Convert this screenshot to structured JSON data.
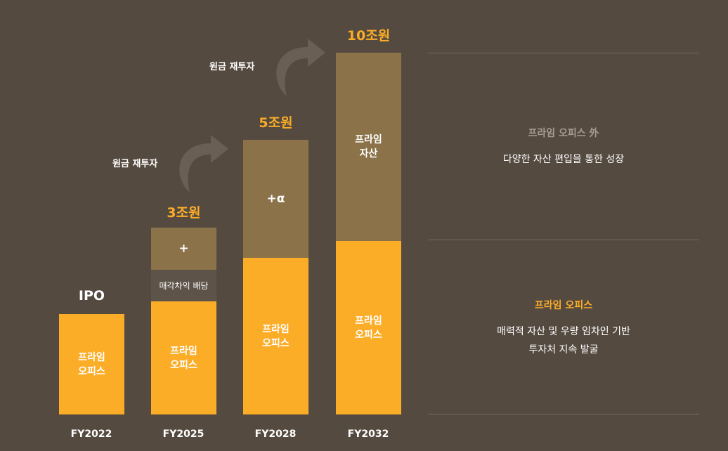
{
  "chart_data": {
    "type": "bar",
    "stacked": true,
    "categories": [
      "FY2022",
      "FY2025",
      "FY2028",
      "FY2032"
    ],
    "totals": [
      "IPO",
      "3조원",
      "5조원",
      "10조원"
    ],
    "bars": [
      {
        "category": "FY2022",
        "total_label": "IPO",
        "segments": [
          {
            "label": "프라임\n오피스",
            "value": 1.0,
            "color": "#fbad28"
          }
        ]
      },
      {
        "category": "FY2025",
        "total_label": "3조원",
        "segments": [
          {
            "label": "프라임\n오피스",
            "value": 1.2,
            "color": "#fbad28"
          },
          {
            "label": "매각차익 배당",
            "value": 0.3,
            "color": "#5e5349"
          },
          {
            "label": "+",
            "value": 0.45,
            "color": "#8b7249"
          }
        ]
      },
      {
        "category": "FY2028",
        "total_label": "5조원",
        "segments": [
          {
            "label": "프라임\n오피스",
            "value": 1.6,
            "color": "#fbad28"
          },
          {
            "label": "+α",
            "value": 1.2,
            "color": "#8b7249"
          }
        ]
      },
      {
        "category": "FY2032",
        "total_label": "10조원",
        "segments": [
          {
            "label": "프라임\n오피스",
            "value": 1.8,
            "color": "#fbad28"
          },
          {
            "label": "프라임\n자산",
            "value": 2.0,
            "color": "#8b7249"
          }
        ]
      }
    ],
    "annotations": [
      "원금 재투자",
      "원금 재투자"
    ],
    "grid": false,
    "legend": "right"
  },
  "legend": {
    "outside": {
      "title": "프라임 오피스 外",
      "desc": "다양한 자산 편입을 통한 성장"
    },
    "prime": {
      "title": "프라임 오피스",
      "desc": "매력적 자산 및 우량 임차인 기반\n투자처 지속 발굴"
    }
  },
  "colors": {
    "background": "#554a40",
    "orange": "#fbad28",
    "brown": "#8b7249",
    "dark": "#5e5349"
  }
}
